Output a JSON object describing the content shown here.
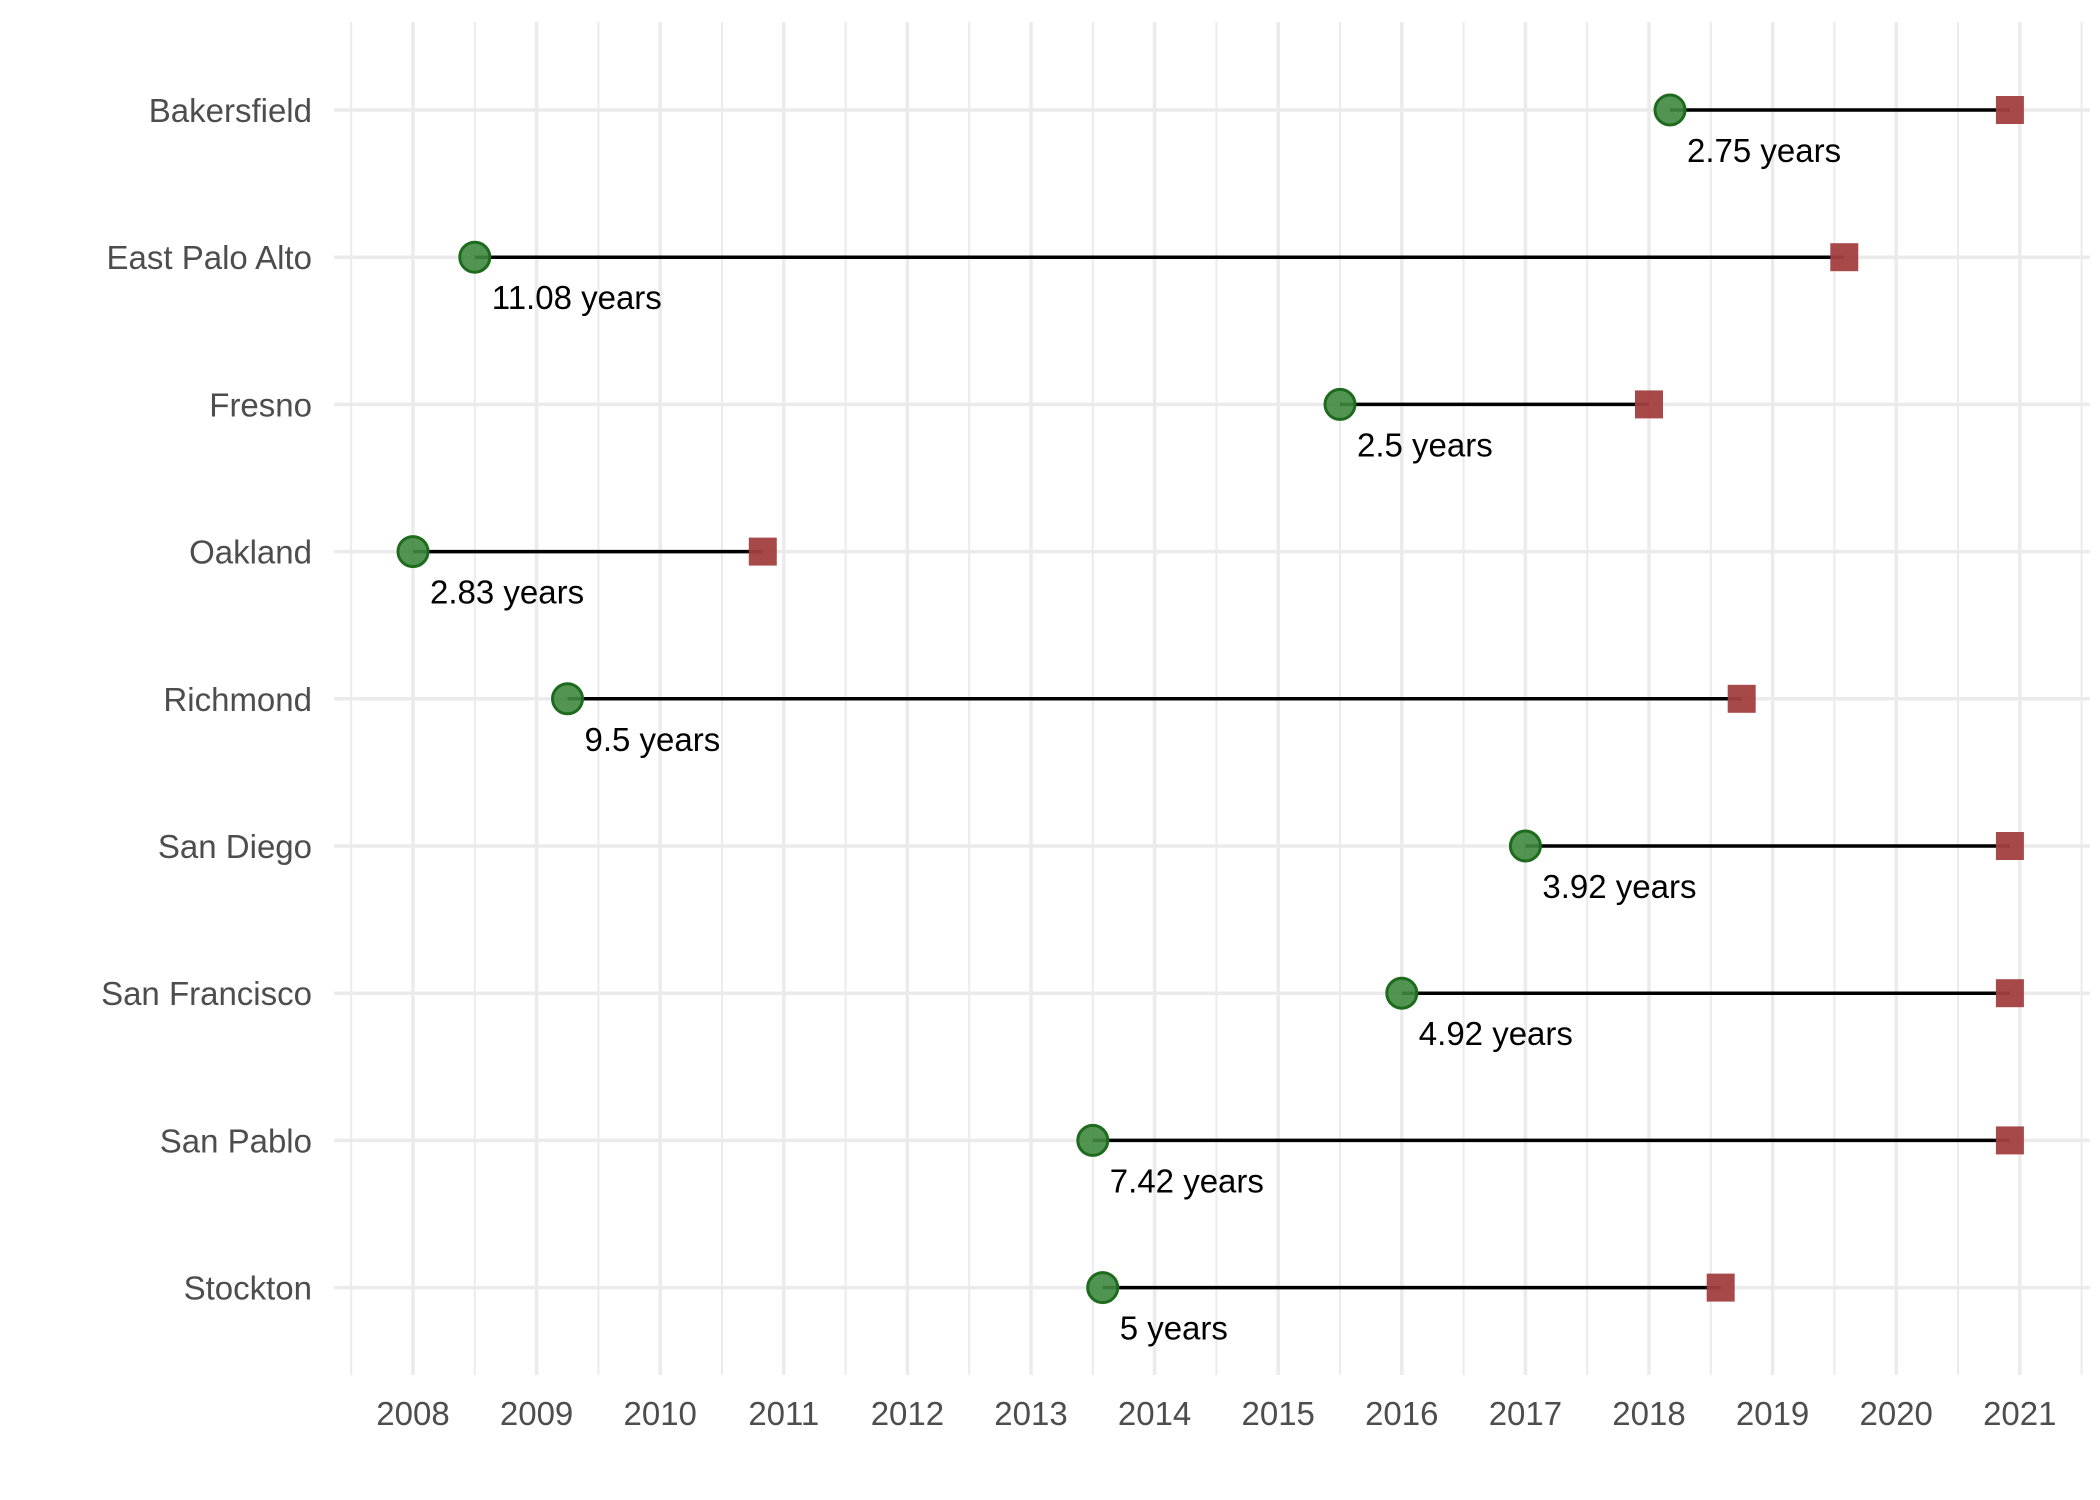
{
  "chart_data": {
    "type": "dumbbell",
    "title": "",
    "xlabel": "",
    "ylabel": "",
    "xlim": [
      2007.5,
      2021.5
    ],
    "x_ticks": [
      2008,
      2009,
      2010,
      2011,
      2012,
      2013,
      2014,
      2015,
      2016,
      2017,
      2018,
      2019,
      2020,
      2021
    ],
    "x_tick_labels": [
      "2008",
      "2009",
      "2010",
      "2011",
      "2012",
      "2013",
      "2014",
      "2015",
      "2016",
      "2017",
      "2018",
      "2019",
      "2020",
      "2021"
    ],
    "grid": true,
    "legend": "none",
    "colors": {
      "start_fill": "#3f8a3f",
      "start_stroke": "#1e6b1e",
      "end_fill": "#a33f3f",
      "segment": "#000000",
      "grid": "#ebebeb"
    },
    "rows": [
      {
        "category": "Bakersfield",
        "start": 2018.17,
        "end": 2020.92,
        "label": "2.75 years"
      },
      {
        "category": "East Palo Alto",
        "start": 2008.5,
        "end": 2019.58,
        "label": "11.08 years"
      },
      {
        "category": "Fresno",
        "start": 2015.5,
        "end": 2018.0,
        "label": "2.5 years"
      },
      {
        "category": "Oakland",
        "start": 2008.0,
        "end": 2010.83,
        "label": "2.83 years"
      },
      {
        "category": "Richmond",
        "start": 2009.25,
        "end": 2018.75,
        "label": "9.5 years"
      },
      {
        "category": "San Diego",
        "start": 2017.0,
        "end": 2020.92,
        "label": "3.92 years"
      },
      {
        "category": "San Francisco",
        "start": 2016.0,
        "end": 2020.92,
        "label": "4.92 years"
      },
      {
        "category": "San Pablo",
        "start": 2013.5,
        "end": 2020.92,
        "label": "7.42 years"
      },
      {
        "category": "Stockton",
        "start": 2013.58,
        "end": 2018.58,
        "label": "5 years"
      }
    ]
  }
}
